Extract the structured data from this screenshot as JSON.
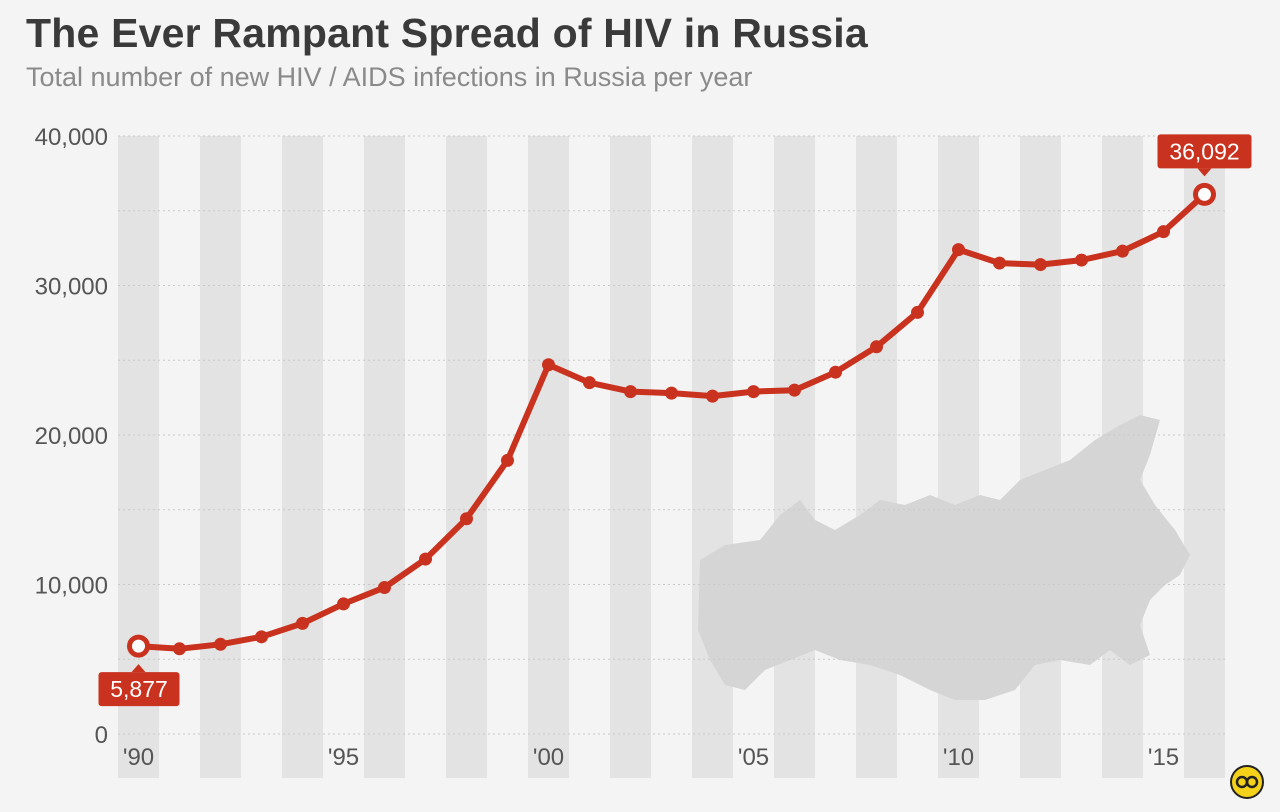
{
  "title": "The Ever Rampant Spread of HIV in Russia",
  "subtitle": "Total number of new HIV / AIDS infections in Russia per year",
  "colors": {
    "line": "#c8321e",
    "band": "#e3e3e3",
    "background": "#f4f4f4",
    "callout": "#c8321e"
  },
  "logo_icon": "statista-logo-icon",
  "chart_data": {
    "type": "line",
    "title": "The Ever Rampant Spread of HIV in Russia",
    "subtitle": "Total number of new HIV / AIDS infections in Russia per year",
    "x": [
      1990,
      1991,
      1992,
      1993,
      1994,
      1995,
      1996,
      1997,
      1998,
      1999,
      2000,
      2001,
      2002,
      2003,
      2004,
      2005,
      2006,
      2007,
      2008,
      2009,
      2010,
      2011,
      2012,
      2013,
      2014,
      2015,
      2016
    ],
    "y_ticks": [
      0,
      10000,
      20000,
      30000,
      40000
    ],
    "y_tick_labels": [
      "0",
      "10,000",
      "20,000",
      "30,000",
      "40,000"
    ],
    "x_ticks": [
      1990,
      1995,
      2000,
      2005,
      2010,
      2015
    ],
    "x_tick_labels": [
      "'90",
      "'95",
      "'00",
      "'05",
      "'10",
      "'15"
    ],
    "ylim": [
      0,
      40000
    ],
    "xlim": [
      1990,
      2016
    ],
    "grid": true,
    "series": [
      {
        "values": [
          5877,
          5700,
          6000,
          6500,
          7400,
          8700,
          9800,
          11700,
          14400,
          18300,
          24700,
          23500,
          22900,
          22800,
          22600,
          22900,
          23000,
          24200,
          25900,
          28200,
          32400,
          31500,
          31400,
          31700,
          32300,
          33600,
          36092
        ]
      }
    ],
    "annotations": [
      {
        "x": 1990,
        "label": "5,877"
      },
      {
        "x": 2016,
        "label": "36,092"
      }
    ]
  }
}
